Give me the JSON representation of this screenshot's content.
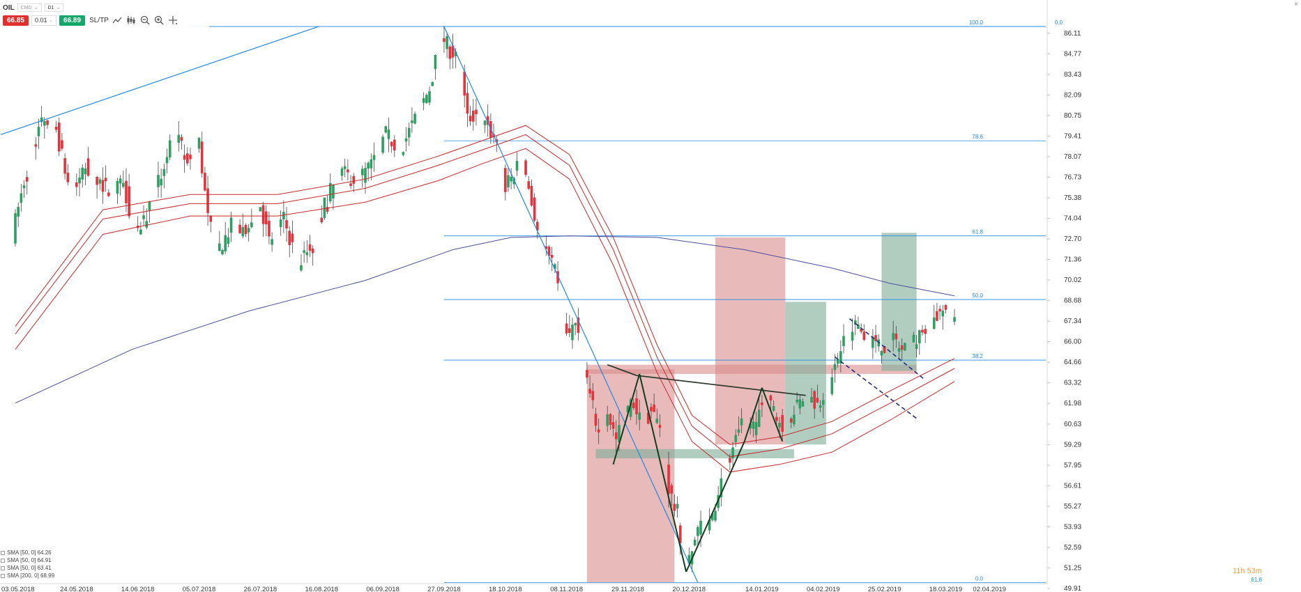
{
  "toolbar": {
    "symbol": "OIL",
    "instrument_type": "CMD",
    "interval": "D1",
    "sell_price": "66.85",
    "quantity": "0.01",
    "buy_price": "66.89",
    "sltp_label": "SL/TP"
  },
  "legend": [
    {
      "label": "SMA [50, 0] 64.26"
    },
    {
      "label": "SMA [50, 0] 64.91"
    },
    {
      "label": "SMA [50, 0] 63.41"
    },
    {
      "label": "SMA [200, 0] 68.99"
    }
  ],
  "timer": {
    "countdown": "11h 53m",
    "sub_label": "61.8"
  },
  "colors": {
    "bull": "#2e9e63",
    "bear": "#e2343c",
    "fib": "#1e88e5",
    "sma_red": "#c62828",
    "sma_long": "#4b4e9c",
    "zone_red": "#d98c8c",
    "zone_green": "#7fae9a"
  },
  "chart_data": {
    "type": "candlestick",
    "title": "",
    "ylim": [
      49.91,
      86.78
    ],
    "y_ticks": [
      "86.11",
      "84.77",
      "83.43",
      "82.09",
      "80.75",
      "79.41",
      "78.07",
      "76.73",
      "75.38",
      "74.04",
      "72.70",
      "71.36",
      "70.02",
      "68.68",
      "67.34",
      "66.00",
      "64.66",
      "63.32",
      "61.98",
      "60.63",
      "59.29",
      "57.95",
      "56.61",
      "55.27",
      "53.93",
      "52.59",
      "51.25",
      "49.91"
    ],
    "x_labels": [
      {
        "day": 0,
        "label": "03.05.2018"
      },
      {
        "day": 21,
        "label": "24.05.2018"
      },
      {
        "day": 42,
        "label": "14.06.2018"
      },
      {
        "day": 63,
        "label": "05.07.2018"
      },
      {
        "day": 84,
        "label": "26.07.2018"
      },
      {
        "day": 105,
        "label": "16.08.2018"
      },
      {
        "day": 126,
        "label": "06.09.2018"
      },
      {
        "day": 147,
        "label": "27.09.2018"
      },
      {
        "day": 168,
        "label": "18.10.2018"
      },
      {
        "day": 189,
        "label": "08.11.2018"
      },
      {
        "day": 210,
        "label": "29.11.2018"
      },
      {
        "day": 231,
        "label": "20.12.2018"
      },
      {
        "day": 256,
        "label": "14.01.2019"
      },
      {
        "day": 277,
        "label": "04.02.2019"
      },
      {
        "day": 298,
        "label": "25.02.2019"
      },
      {
        "day": 319,
        "label": "18.03.2019"
      },
      {
        "day": 334,
        "label": "02.04.2019"
      }
    ],
    "price_keypoints": [
      [
        0,
        73.0
      ],
      [
        4,
        76.5
      ],
      [
        10,
        80.5
      ],
      [
        15,
        79.8
      ],
      [
        20,
        75.5
      ],
      [
        25,
        77.5
      ],
      [
        32,
        76.0
      ],
      [
        38,
        76.5
      ],
      [
        42,
        73.0
      ],
      [
        48,
        75.0
      ],
      [
        55,
        79.5
      ],
      [
        60,
        78.0
      ],
      [
        64,
        79.0
      ],
      [
        67,
        74.0
      ],
      [
        70,
        71.8
      ],
      [
        75,
        73.5
      ],
      [
        80,
        73.0
      ],
      [
        85,
        75.0
      ],
      [
        88,
        72.5
      ],
      [
        93,
        74.0
      ],
      [
        98,
        71.0
      ],
      [
        103,
        72.5
      ],
      [
        108,
        75.5
      ],
      [
        113,
        77.0
      ],
      [
        118,
        76.5
      ],
      [
        123,
        77.5
      ],
      [
        128,
        79.5
      ],
      [
        133,
        78.5
      ],
      [
        138,
        80.5
      ],
      [
        143,
        82.5
      ],
      [
        147,
        86.0
      ],
      [
        150,
        85.0
      ],
      [
        153,
        84.5
      ],
      [
        156,
        80.5
      ],
      [
        160,
        81.0
      ],
      [
        163,
        80.0
      ],
      [
        166,
        79.0
      ],
      [
        169,
        76.0
      ],
      [
        172,
        77.0
      ],
      [
        175,
        78.0
      ],
      [
        178,
        75.0
      ],
      [
        181,
        72.5
      ],
      [
        185,
        71.0
      ],
      [
        188,
        68.5
      ],
      [
        190,
        66.5
      ],
      [
        193,
        67.0
      ],
      [
        196,
        64.5
      ],
      [
        198,
        62.5
      ],
      [
        201,
        60.0
      ],
      [
        204,
        61.5
      ],
      [
        207,
        59.5
      ],
      [
        210,
        61.5
      ],
      [
        213,
        62.0
      ],
      [
        216,
        60.5
      ],
      [
        219,
        61.5
      ],
      [
        222,
        60.5
      ],
      [
        225,
        56.5
      ],
      [
        228,
        54.5
      ],
      [
        230,
        52.0
      ],
      [
        232,
        51.5
      ],
      [
        235,
        54.0
      ],
      [
        238,
        53.5
      ],
      [
        241,
        55.5
      ],
      [
        244,
        57.5
      ],
      [
        247,
        59.0
      ],
      [
        250,
        60.5
      ],
      [
        253,
        60.0
      ],
      [
        256,
        61.5
      ],
      [
        259,
        62.0
      ],
      [
        262,
        61.0
      ],
      [
        265,
        60.5
      ],
      [
        268,
        61.5
      ],
      [
        272,
        62.5
      ],
      [
        276,
        62.0
      ],
      [
        280,
        63.0
      ],
      [
        283,
        65.0
      ],
      [
        286,
        66.5
      ],
      [
        289,
        67.0
      ],
      [
        292,
        66.5
      ],
      [
        295,
        66.0
      ],
      [
        298,
        65.5
      ],
      [
        302,
        66.0
      ],
      [
        306,
        65.5
      ],
      [
        310,
        66.0
      ],
      [
        313,
        67.0
      ],
      [
        316,
        67.5
      ],
      [
        319,
        68.0
      ],
      [
        322,
        67.3
      ]
    ],
    "sma_50_a": [
      [
        0,
        66.5
      ],
      [
        30,
        74.0
      ],
      [
        60,
        75.0
      ],
      [
        90,
        75.0
      ],
      [
        120,
        76.0
      ],
      [
        145,
        77.5
      ],
      [
        160,
        78.5
      ],
      [
        175,
        79.5
      ],
      [
        190,
        77.5
      ],
      [
        205,
        72.0
      ],
      [
        220,
        65.0
      ],
      [
        232,
        60.5
      ],
      [
        245,
        58.5
      ],
      [
        262,
        59.0
      ],
      [
        280,
        60.0
      ],
      [
        300,
        62.0
      ],
      [
        322,
        64.26
      ]
    ],
    "sma_50_b": [
      [
        0,
        67.0
      ],
      [
        30,
        74.6
      ],
      [
        60,
        75.6
      ],
      [
        90,
        75.6
      ],
      [
        120,
        76.6
      ],
      [
        145,
        78.1
      ],
      [
        160,
        79.1
      ],
      [
        175,
        80.1
      ],
      [
        190,
        78.2
      ],
      [
        205,
        72.8
      ],
      [
        220,
        65.8
      ],
      [
        232,
        61.2
      ],
      [
        245,
        59.3
      ],
      [
        262,
        59.8
      ],
      [
        280,
        60.8
      ],
      [
        300,
        62.8
      ],
      [
        322,
        64.91
      ]
    ],
    "sma_50_c": [
      [
        0,
        65.5
      ],
      [
        30,
        73.0
      ],
      [
        60,
        74.2
      ],
      [
        90,
        74.2
      ],
      [
        120,
        75.1
      ],
      [
        145,
        76.5
      ],
      [
        160,
        77.6
      ],
      [
        175,
        78.6
      ],
      [
        190,
        76.6
      ],
      [
        205,
        71.0
      ],
      [
        220,
        64.0
      ],
      [
        232,
        59.5
      ],
      [
        245,
        57.5
      ],
      [
        262,
        58.0
      ],
      [
        280,
        58.8
      ],
      [
        300,
        60.9
      ],
      [
        322,
        63.41
      ]
    ],
    "sma_200": [
      [
        0,
        62.0
      ],
      [
        40,
        65.5
      ],
      [
        80,
        68.0
      ],
      [
        120,
        70.0
      ],
      [
        150,
        72.0
      ],
      [
        170,
        72.8
      ],
      [
        190,
        72.9
      ],
      [
        220,
        72.8
      ],
      [
        250,
        72.0
      ],
      [
        280,
        70.8
      ],
      [
        300,
        69.8
      ],
      [
        322,
        68.99
      ]
    ],
    "fib_levels": [
      {
        "label": "100.0",
        "price": 86.55
      },
      {
        "label": "78.6",
        "price": 79.1
      },
      {
        "label": "61.8",
        "price": 72.9
      },
      {
        "label": "50.0",
        "price": 68.75
      },
      {
        "label": "38.2",
        "price": 64.8
      },
      {
        "label": "0.0",
        "price": 50.3
      }
    ],
    "fib_top_right_label": "0.0",
    "trendlines": [
      {
        "style": "blue",
        "from": [
          -5,
          79.5
        ],
        "to": [
          104,
          86.55
        ]
      },
      {
        "style": "blue",
        "from": [
          147,
          86.55
        ],
        "to": [
          234,
          50.3
        ]
      },
      {
        "style": "dark",
        "from": [
          203,
          64.5
        ],
        "to": [
          213,
          63.8
        ]
      },
      {
        "style": "dark",
        "from": [
          213,
          63.8
        ],
        "to": [
          271,
          62.5
        ]
      },
      {
        "style": "dark-green",
        "from": [
          205,
          58.0
        ],
        "to": [
          214,
          63.9
        ]
      },
      {
        "style": "dark-green",
        "from": [
          214,
          63.9
        ],
        "to": [
          230,
          51.0
        ]
      },
      {
        "style": "dark-green",
        "from": [
          230,
          51.0
        ],
        "to": [
          250,
          59.5
        ]
      },
      {
        "style": "dark-green",
        "from": [
          250,
          59.5
        ],
        "to": [
          256,
          63.0
        ]
      },
      {
        "style": "dark-green",
        "from": [
          256,
          63.0
        ],
        "to": [
          263,
          59.5
        ]
      }
    ],
    "channel": [
      {
        "from": [
          286,
          67.5
        ],
        "to": [
          312,
          63.5
        ]
      },
      {
        "from": [
          281,
          65.0
        ],
        "to": [
          309,
          61.0
        ]
      }
    ],
    "zones": [
      {
        "color": "red",
        "x0": 196,
        "x1": 226,
        "y0": 50.3,
        "y1": 64.2
      },
      {
        "color": "red",
        "x0": 240,
        "x1": 264,
        "y0": 59.3,
        "y1": 72.8
      },
      {
        "color": "red",
        "x0": 196,
        "x1": 309,
        "y0": 63.9,
        "y1": 64.5
      },
      {
        "color": "green",
        "x0": 199,
        "x1": 267,
        "y0": 58.4,
        "y1": 59.0
      },
      {
        "color": "green",
        "x0": 264,
        "x1": 278,
        "y0": 59.3,
        "y1": 68.6
      },
      {
        "color": "green",
        "x0": 297,
        "x1": 309,
        "y0": 64.1,
        "y1": 73.1
      }
    ]
  }
}
